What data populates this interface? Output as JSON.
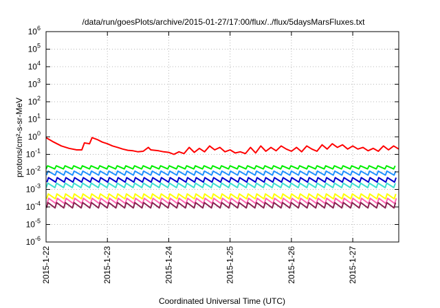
{
  "chart_data": {
    "type": "line",
    "title": "/data/run/goesPlots/archive/2015-01-27/17:00/flux/../flux/5daysMarsFluxes.txt",
    "xlabel": "Coordinated Universal Time (UTC)",
    "ylabel": "protons/cm²-s-sr-MeV",
    "y_scale": "log",
    "ylim": [
      1e-06,
      1000000.0
    ],
    "y_ticks": [
      {
        "value": 1e-06,
        "base": "10",
        "exp": "-6"
      },
      {
        "value": 1e-05,
        "base": "10",
        "exp": "-5"
      },
      {
        "value": 0.0001,
        "base": "10",
        "exp": "-4"
      },
      {
        "value": 0.001,
        "base": "10",
        "exp": "-3"
      },
      {
        "value": 0.01,
        "base": "10",
        "exp": "-2"
      },
      {
        "value": 0.1,
        "base": "10",
        "exp": "-1"
      },
      {
        "value": 1,
        "base": "10",
        "exp": "0"
      },
      {
        "value": 10,
        "base": "10",
        "exp": "1"
      },
      {
        "value": 100,
        "base": "10",
        "exp": "2"
      },
      {
        "value": 1000,
        "base": "10",
        "exp": "3"
      },
      {
        "value": 10000,
        "base": "10",
        "exp": "4"
      },
      {
        "value": 100000,
        "base": "10",
        "exp": "5"
      },
      {
        "value": 1000000,
        "base": "10",
        "exp": "6"
      }
    ],
    "xlim": [
      "2015-01-22T00:00",
      "2015-01-27T18:00"
    ],
    "x_ticks": [
      "2015-1-22",
      "2015-1-23",
      "2015-1-24",
      "2015-1-25",
      "2015-1-26",
      "2015-1-27"
    ],
    "grid": true,
    "legend": "none",
    "series": [
      {
        "color": "#ff0000",
        "x": [
          "2015-01-22T00:00",
          "2015-01-22T03:00",
          "2015-01-22T06:00",
          "2015-01-22T09:00",
          "2015-01-22T12:00",
          "2015-01-22T14:00",
          "2015-01-22T15:00",
          "2015-01-22T17:00",
          "2015-01-22T18:00",
          "2015-01-22T20:00",
          "2015-01-22T22:00",
          "2015-01-23T00:00",
          "2015-01-23T02:00",
          "2015-01-23T04:00",
          "2015-01-23T06:00",
          "2015-01-23T08:00",
          "2015-01-23T10:00",
          "2015-01-23T12:00",
          "2015-01-23T14:00",
          "2015-01-23T16:00",
          "2015-01-23T17:00",
          "2015-01-23T20:00",
          "2015-01-23T22:00",
          "2015-01-24T00:00",
          "2015-01-24T02:00",
          "2015-01-24T04:00",
          "2015-01-24T06:00",
          "2015-01-24T08:00",
          "2015-01-24T10:00",
          "2015-01-24T12:00",
          "2015-01-24T14:00",
          "2015-01-24T16:00",
          "2015-01-24T18:00",
          "2015-01-24T20:00",
          "2015-01-24T22:00",
          "2015-01-25T00:00",
          "2015-01-25T02:00",
          "2015-01-25T04:00",
          "2015-01-25T06:00",
          "2015-01-25T08:00",
          "2015-01-25T10:00",
          "2015-01-25T12:00",
          "2015-01-25T14:00",
          "2015-01-25T16:00",
          "2015-01-25T18:00",
          "2015-01-25T20:00",
          "2015-01-25T22:00",
          "2015-01-26T00:00",
          "2015-01-26T02:00",
          "2015-01-26T04:00",
          "2015-01-26T06:00",
          "2015-01-26T08:00",
          "2015-01-26T10:00",
          "2015-01-26T12:00",
          "2015-01-26T14:00",
          "2015-01-26T16:00",
          "2015-01-26T18:00",
          "2015-01-26T20:00",
          "2015-01-26T22:00",
          "2015-01-27T00:00",
          "2015-01-27T02:00",
          "2015-01-27T04:00",
          "2015-01-27T06:00",
          "2015-01-27T08:00",
          "2015-01-27T10:00",
          "2015-01-27T12:00",
          "2015-01-27T14:00",
          "2015-01-27T16:00",
          "2015-01-27T18:00"
        ],
        "values": [
          0.9,
          0.5,
          0.3,
          0.22,
          0.18,
          0.18,
          0.45,
          0.4,
          0.9,
          0.7,
          0.5,
          0.4,
          0.3,
          0.25,
          0.2,
          0.17,
          0.16,
          0.14,
          0.15,
          0.25,
          0.18,
          0.16,
          0.14,
          0.13,
          0.1,
          0.14,
          0.11,
          0.25,
          0.13,
          0.22,
          0.14,
          0.3,
          0.18,
          0.25,
          0.14,
          0.18,
          0.12,
          0.14,
          0.11,
          0.25,
          0.12,
          0.3,
          0.15,
          0.25,
          0.16,
          0.3,
          0.2,
          0.15,
          0.25,
          0.14,
          0.3,
          0.2,
          0.15,
          0.35,
          0.2,
          0.4,
          0.25,
          0.35,
          0.2,
          0.3,
          0.2,
          0.25,
          0.16,
          0.22,
          0.15,
          0.3,
          0.18,
          0.3,
          0.2
        ]
      },
      {
        "color": "#00ee00",
        "base": 0.018,
        "amp": 1.5,
        "offset": 0.0
      },
      {
        "color": "#1e90ff",
        "base": 0.0085,
        "amp": 1.7,
        "offset": 0.05
      },
      {
        "color": "#0000cc",
        "base": 0.0035,
        "amp": 1.8,
        "offset": 0.1
      },
      {
        "color": "#40e0d0",
        "base": 0.0017,
        "amp": 1.8,
        "offset": 0.02
      },
      {
        "color": "#ffff00",
        "base": 0.0004,
        "amp": 1.9,
        "offset": 0.07
      },
      {
        "color": "#ff69b4",
        "base": 0.00022,
        "amp": 2.0,
        "offset": 0.12
      },
      {
        "color": "#8b2252",
        "base": 0.000125,
        "amp": 2.0,
        "offset": 0.04
      }
    ],
    "sawtooth_period_hours": 3.4
  }
}
